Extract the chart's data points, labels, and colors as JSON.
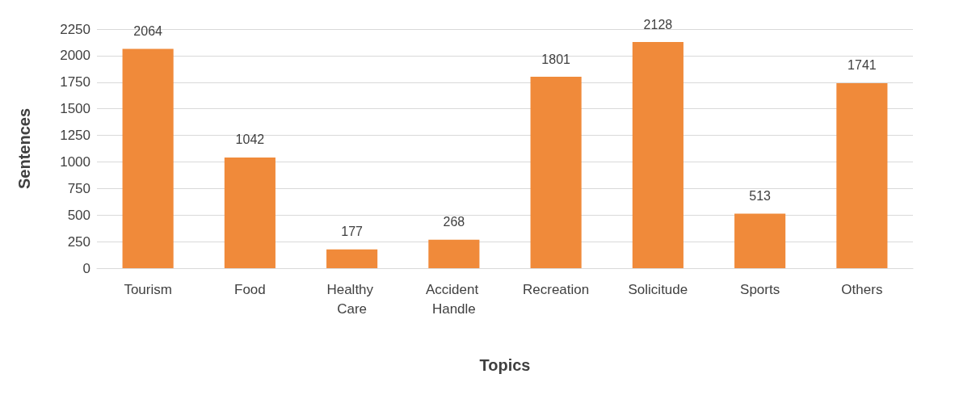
{
  "chart_data": {
    "type": "bar",
    "xlabel": "Topics",
    "ylabel": "Sentences",
    "categories": [
      "Tourism",
      "Food",
      "Healthy Care",
      "Accident Handle",
      "Recreation",
      "Solicitude",
      "Sports",
      "Others"
    ],
    "values": [
      2064,
      1042,
      177,
      268,
      1801,
      2128,
      513,
      1741
    ],
    "color": "#f08a3a",
    "ylim": [
      0,
      2250
    ],
    "yticks": [
      0,
      250,
      500,
      750,
      1000,
      1250,
      1500,
      1750,
      2000,
      2250
    ],
    "grid": "y",
    "data_labels": true
  }
}
